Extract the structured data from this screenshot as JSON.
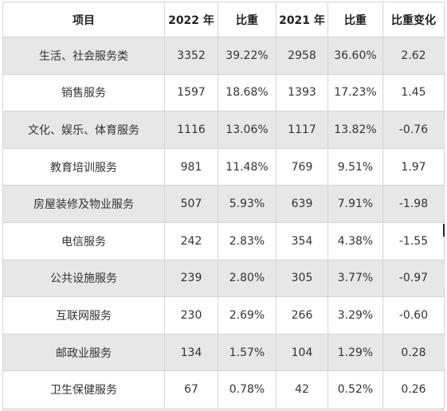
{
  "table": {
    "headers": [
      "项目",
      "2022 年",
      "比重",
      "2021 年",
      "比重",
      "比重变化"
    ],
    "rows": [
      [
        "生活、社会服务类",
        "3352",
        "39.22%",
        "2958",
        "36.60%",
        "2.62"
      ],
      [
        "销售服务",
        "1597",
        "18.68%",
        "1393",
        "17.23%",
        "1.45"
      ],
      [
        "文化、娱乐、体育服务",
        "1116",
        "13.06%",
        "1117",
        "13.82%",
        "-0.76"
      ],
      [
        "教育培训服务",
        "981",
        "11.48%",
        "769",
        "9.51%",
        "1.97"
      ],
      [
        "房屋装修及物业服务",
        "507",
        "5.93%",
        "639",
        "7.91%",
        "-1.98"
      ],
      [
        "电信服务",
        "242",
        "2.83%",
        "354",
        "4.38%",
        "-1.55"
      ],
      [
        "公共设施服务",
        "239",
        "2.80%",
        "305",
        "3.77%",
        "-0.97"
      ],
      [
        "互联网服务",
        "230",
        "2.69%",
        "266",
        "3.29%",
        "-0.60"
      ],
      [
        "邮政业服务",
        "134",
        "1.57%",
        "104",
        "1.29%",
        "0.28"
      ],
      [
        "卫生保健服务",
        "67",
        "0.78%",
        "42",
        "0.52%",
        "0.26"
      ]
    ]
  }
}
